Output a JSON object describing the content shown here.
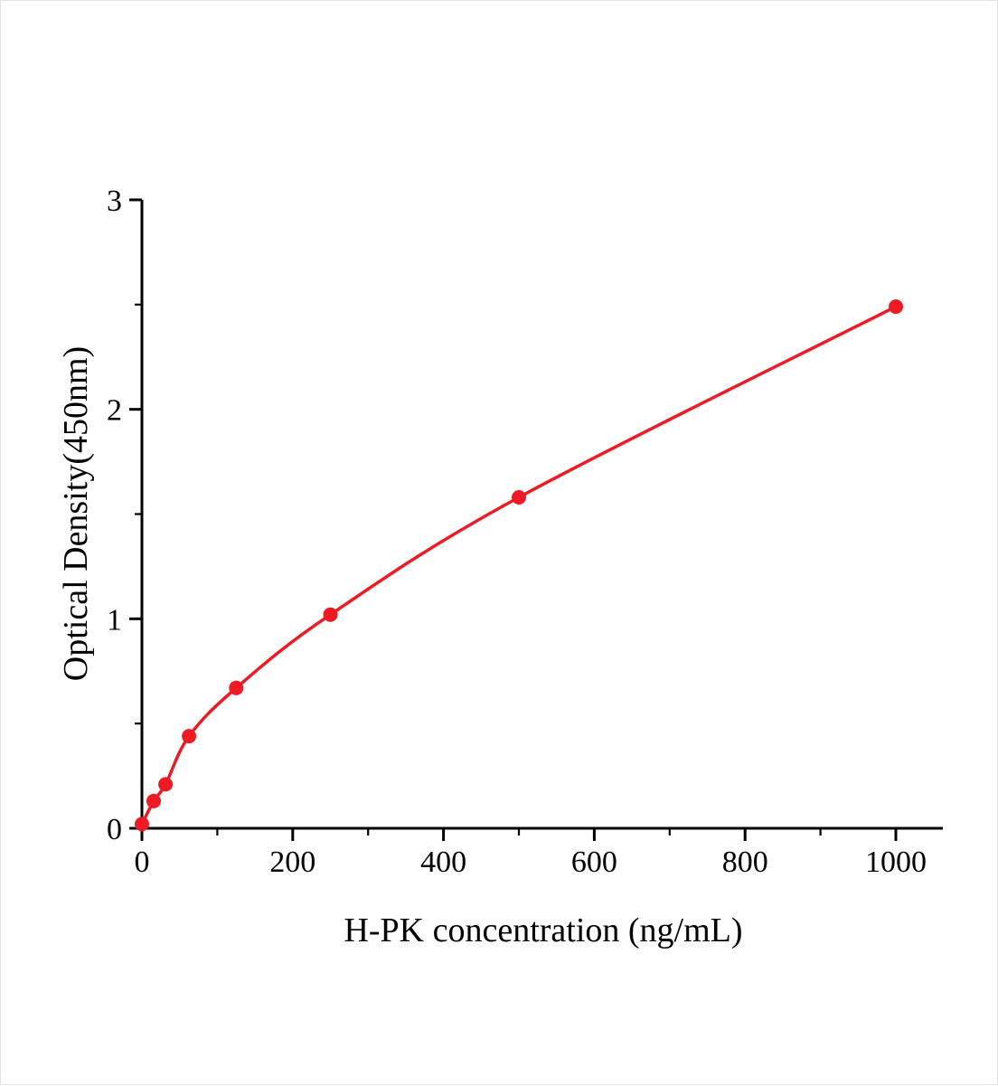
{
  "page": {
    "background": "#ffffff"
  },
  "chart_data": {
    "type": "scatter",
    "title": "",
    "xlabel": "H-PK concentration (ng/mL)",
    "ylabel": "Optical Density(450nm)",
    "x": [
      0,
      15.6,
      31.25,
      62.5,
      125,
      250,
      500,
      1000
    ],
    "y": [
      0.02,
      0.13,
      0.21,
      0.44,
      0.67,
      1.02,
      1.58,
      2.49
    ],
    "curve": "smooth fitted curve through all data points",
    "xlim": [
      0,
      1000
    ],
    "ylim": [
      0,
      3
    ],
    "x_major_ticks": [
      0,
      200,
      400,
      600,
      800,
      1000
    ],
    "x_minor_ticks": [
      100,
      300,
      500,
      700,
      900
    ],
    "y_major_ticks": [
      0,
      1,
      2,
      3
    ],
    "y_minor_ticks": [
      0.5,
      1.5,
      2.5
    ],
    "grid": false,
    "legend": null,
    "marker_color": "#ed1c24",
    "line_color": "#ed1c24",
    "axis_color": "#000000",
    "text_color": "#000000"
  }
}
